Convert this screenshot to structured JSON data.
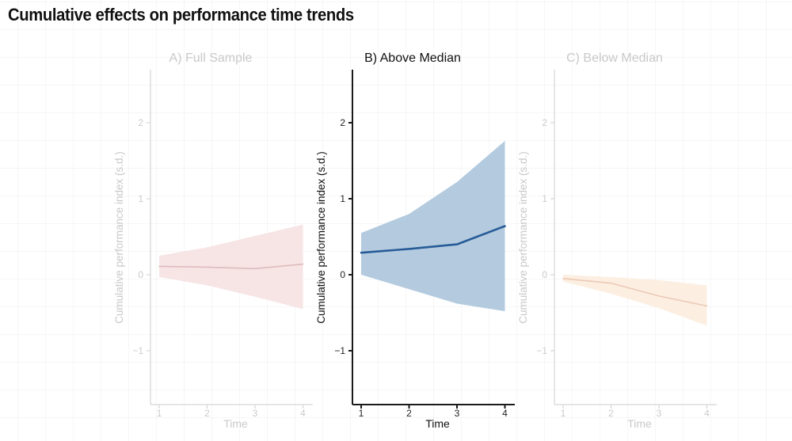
{
  "page_title": "Cumulative effects on performance time trends",
  "chart_data": [
    {
      "type": "area",
      "panel": "A",
      "title": "A) Full Sample",
      "active": false,
      "x": [
        1,
        2,
        3,
        4
      ],
      "series": [
        {
          "name": "estimate",
          "values": [
            0.11,
            0.1,
            0.08,
            0.14
          ]
        },
        {
          "name": "ci_upper",
          "values": [
            0.25,
            0.36,
            0.51,
            0.66
          ]
        },
        {
          "name": "ci_lower",
          "values": [
            -0.03,
            -0.14,
            -0.29,
            -0.45
          ]
        }
      ],
      "xlabel": "Time",
      "ylabel": "Cumulative performance index (s.d.)",
      "xticks": [
        1,
        2,
        3,
        4
      ],
      "yticks": [
        2,
        1,
        0,
        -1
      ],
      "ylim": [
        -1.7,
        2.7
      ],
      "xlim": [
        1,
        4
      ],
      "grid": "faint",
      "legend": "none",
      "band_color": "#f7e4e5",
      "line_color": "#ddbcbc",
      "axis_color": "#d5d5d5",
      "text_color": "#cbcbcb"
    },
    {
      "type": "area",
      "panel": "B",
      "title": "B) Above Median",
      "active": true,
      "x": [
        1,
        2,
        3,
        4
      ],
      "series": [
        {
          "name": "estimate",
          "values": [
            0.29,
            0.34,
            0.4,
            0.64
          ]
        },
        {
          "name": "ci_upper",
          "values": [
            0.55,
            0.8,
            1.22,
            1.76
          ]
        },
        {
          "name": "ci_lower",
          "values": [
            0.0,
            -0.19,
            -0.38,
            -0.48
          ]
        }
      ],
      "xlabel": "Time",
      "ylabel": "Cumulative performance index (s.d.)",
      "xticks": [
        1,
        2,
        3,
        4
      ],
      "yticks": [
        2,
        1,
        0,
        -1
      ],
      "ylim": [
        -1.7,
        2.7
      ],
      "xlim": [
        1,
        4
      ],
      "grid": "faint",
      "legend": "none",
      "band_color": "#b4cbdf",
      "line_color": "#275b97",
      "axis_color": "#1a1a1a",
      "text_color": "#222222"
    },
    {
      "type": "area",
      "panel": "C",
      "title": "C) Below Median",
      "active": false,
      "x": [
        1,
        2,
        3,
        4
      ],
      "series": [
        {
          "name": "estimate",
          "values": [
            -0.05,
            -0.11,
            -0.28,
            -0.41
          ]
        },
        {
          "name": "ci_upper",
          "values": [
            0.0,
            -0.03,
            -0.07,
            -0.14
          ]
        },
        {
          "name": "ci_lower",
          "values": [
            -0.09,
            -0.25,
            -0.44,
            -0.67
          ]
        }
      ],
      "xlabel": "Time",
      "ylabel": "Cumulative performance index (s.d.)",
      "xticks": [
        1,
        2,
        3,
        4
      ],
      "yticks": [
        2,
        1,
        0,
        -1
      ],
      "ylim": [
        -1.7,
        2.7
      ],
      "xlim": [
        1,
        4
      ],
      "grid": "faint",
      "legend": "none",
      "band_color": "#fcefe1",
      "line_color": "#ecc9b6",
      "axis_color": "#d5d5d5",
      "text_color": "#cbcbcb"
    }
  ]
}
